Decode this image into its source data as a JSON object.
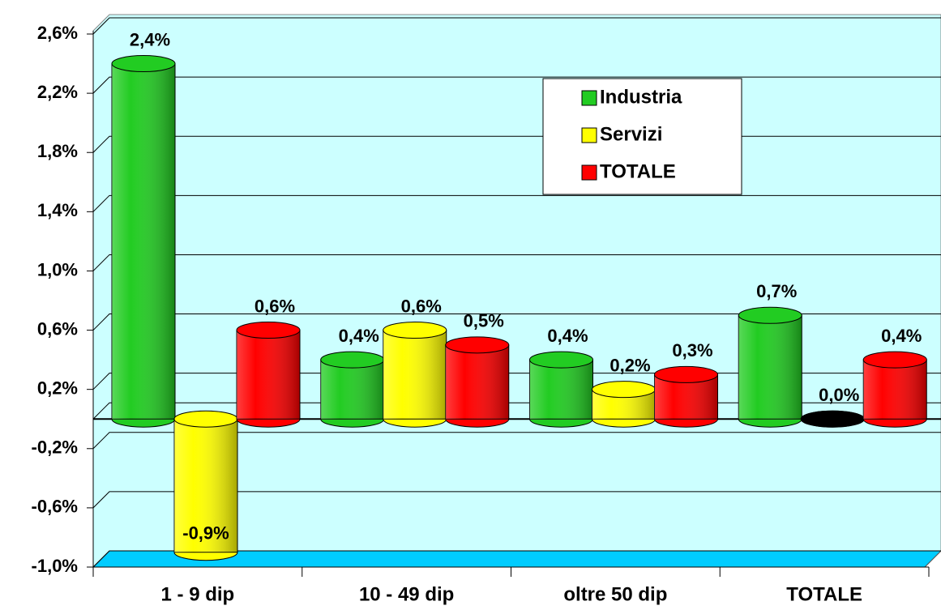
{
  "chart_data": {
    "type": "bar",
    "categories": [
      "1 - 9 dip",
      "10 - 49 dip",
      "oltre 50 dip",
      "TOTALE"
    ],
    "series": [
      {
        "name": "Industria",
        "color": "#22cc22",
        "values": [
          2.4,
          0.4,
          0.4,
          0.7
        ],
        "value_labels": [
          "2,4%",
          "0,4%",
          "0,4%",
          "0,7%"
        ]
      },
      {
        "name": "Servizi",
        "color": "#ffff00",
        "values": [
          -0.9,
          0.6,
          0.2,
          0.0
        ],
        "value_labels": [
          "-0,9%",
          "0,6%",
          "0,2%",
          "0,0%"
        ]
      },
      {
        "name": "TOTALE",
        "color": "#ff0000",
        "values": [
          0.6,
          0.5,
          0.3,
          0.4
        ],
        "value_labels": [
          "0,6%",
          "0,5%",
          "0,3%",
          "0,4%"
        ]
      }
    ],
    "ylim": [
      -1.0,
      2.6
    ],
    "yticks": [
      {
        "value": -1.0,
        "label": "-1,0%"
      },
      {
        "value": -0.6,
        "label": "-0,6%"
      },
      {
        "value": -0.2,
        "label": "-0,2%"
      },
      {
        "value": 0.2,
        "label": "0,2%"
      },
      {
        "value": 0.6,
        "label": "0,6%"
      },
      {
        "value": 1.0,
        "label": "1,0%"
      },
      {
        "value": 1.4,
        "label": "1,4%"
      },
      {
        "value": 1.8,
        "label": "1,8%"
      },
      {
        "value": 2.2,
        "label": "2,2%"
      },
      {
        "value": 2.6,
        "label": "2,6%"
      }
    ],
    "grid": true,
    "legend": "upper right"
  }
}
